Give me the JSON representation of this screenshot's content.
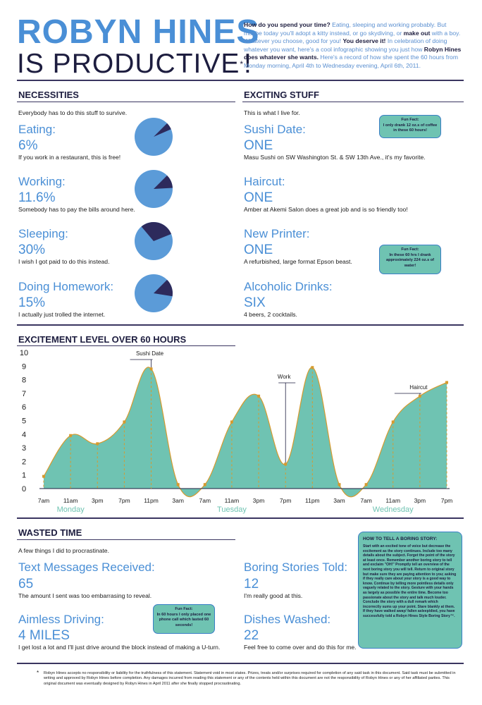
{
  "header": {
    "title_line1": "ROBYN HINES",
    "title_line2": "IS PRODUCTIVE",
    "title_mark": "!",
    "title_asterisk": "*",
    "intro": {
      "p1": "How do you spend your time?",
      "p2": " Eating, sleeping and working probably. But maybe today you'll adopt a kitty instead, or go skydiving, or ",
      "p3": "make out",
      "p4": " with a boy. Whatever you choose, good for you! ",
      "p5": "You deserve it!",
      "p6": " In celebration of doing whatever you want, here's a cool infographic showing you just how ",
      "p7": "Robyn Hines does whatever she wants.",
      "p8": " Here's a record of how she spent the 60 hours from Monday morning, April 4th to Wednesday evening, April 6th, 2011."
    }
  },
  "necessities": {
    "title": "NECESSITIES",
    "subtitle": "Everybody has to do this stuff to survive.",
    "items": [
      {
        "label": "Eating:",
        "value": "6%",
        "percent": 6,
        "note": "If you work in a restaurant, this is free!"
      },
      {
        "label": "Working:",
        "value": "11.6%",
        "percent": 11.6,
        "note": "Somebody has to pay the bills around here."
      },
      {
        "label": "Sleeping:",
        "value": "30%",
        "percent": 30,
        "note": "I wish I got paid to do this instead."
      },
      {
        "label": "Doing Homework:",
        "value": "15%",
        "percent": 15,
        "note": "I actually just trolled the internet."
      }
    ]
  },
  "exciting": {
    "title": "EXCITING STUFF",
    "subtitle": "This is what I live for.",
    "items": [
      {
        "label": "Sushi Date:",
        "value": "ONE",
        "note": "Masu Sushi on SW Washington St. & SW 13th Ave., it's my favorite."
      },
      {
        "label": "Haircut:",
        "value": "ONE",
        "note": "Amber at Akemi Salon does a great job and is so friendly too!"
      },
      {
        "label": "New Printer:",
        "value": "ONE",
        "note": "A refurbished, large format Epson beast."
      },
      {
        "label": "Alcoholic Drinks:",
        "value": "SIX",
        "note": "4 beers, 2 cocktails."
      }
    ],
    "fact1": {
      "title": "Fun Fact:",
      "text": "I only drank 12 oz.s of coffee in these 60 hours!"
    },
    "fact2": {
      "title": "Fun Fact:",
      "text": "In these 60 hrs I drank approximately 224 oz.s of water!"
    }
  },
  "chart_data": {
    "type": "area",
    "title": "EXCITEMENT LEVEL OVER 60 HOURS",
    "ylim": [
      0,
      10
    ],
    "yticks": [
      "0",
      "1",
      "2",
      "3",
      "4",
      "5",
      "6",
      "7",
      "8",
      "9",
      "10"
    ],
    "x_tick_labels": [
      "7am",
      "11am",
      "3pm",
      "7pm",
      "11pm",
      "3am",
      "7am",
      "11am",
      "3pm",
      "7pm",
      "11pm",
      "3am",
      "7am",
      "11am",
      "3pm",
      "7pm"
    ],
    "day_labels": [
      "Monday",
      "Tuesday",
      "Wednesday"
    ],
    "x": [
      0,
      4,
      8,
      12,
      16,
      20,
      24,
      28,
      32,
      36,
      40,
      44,
      48,
      52,
      56,
      60
    ],
    "values": [
      0.9,
      3.9,
      3.3,
      4.9,
      8.8,
      0.3,
      0.3,
      4.9,
      6.8,
      1.8,
      8.9,
      0.3,
      0.3,
      4.9,
      6.8,
      7.8
    ],
    "annotations": [
      {
        "label": "Sushi Date",
        "x": 16,
        "y": 8.8
      },
      {
        "label": "Work",
        "x": 36,
        "y": 1.8
      },
      {
        "label": "Haircut",
        "x": 56,
        "y": 6.8
      }
    ],
    "grid": false,
    "colors": {
      "fill": "#6fc3b2",
      "line": "#d69a2e",
      "marker": "#d69a2e"
    }
  },
  "wasted": {
    "title": "WASTED TIME",
    "subtitle": "A few things I did to procrastinate.",
    "items": [
      {
        "label": "Text Messages Received:",
        "value": "65",
        "note": "The amount I sent was too embarrasing to reveal."
      },
      {
        "label": "Aimless Driving:",
        "value": "4 MILES",
        "note": "I get lost a lot and I'll just drive around the block instead of making a U-turn."
      },
      {
        "label": "Boring Stories Told:",
        "value": "12",
        "note": "I'm really good at this."
      },
      {
        "label": "Dishes Washed:",
        "value": "22",
        "note": "Feel free to come over and do this for me."
      }
    ],
    "fact": {
      "title": "Fun Fact:",
      "text": "In 60 hours I only placed one phone call which lasted 60 seconds!"
    },
    "boring": {
      "title": "HOW TO TELL A BORING STORY:",
      "text": "Start with an excited tone of voice but decrease the excitement as the story continues. Include too many details about the subject. Forget the point of the story at least once. Remember another boring story to tell and exclaim \"OH!\" Promptly tell an overview of the next boring story you will tell. Return to original story but make sure they are paying attention to you; asking if they really care about your story is a good way to know. Continue by telling more pointless details only vaguely related to the story. Gesture with your hands as largely as possible the entire time. Become too passionate about the story and talk much louder. Conclude the story with a dull remark which incorrectly sums up your point. Stare blankly at them. If they have walked away/ fallen asleep/died, you have successfully told a Robyn Hines Style Boring Story™."
    }
  },
  "footer": {
    "star": "*",
    "text": "Robyn Hines accepts no responsibility or liability for the truthfulness of this statement. Statement void in most states. Prizes, treats and/or surprises required for completion of any said task in this document. Said task must be submitted in writing and approved by Robyn Hines before completion. Any damages incurred from reading this statement or any of the contents held within this document are not the responsibility of Robyn Hines or any of her affiliated parties. This original document was eventually designed by Robyn Hines in April 2011 after she finally stopped procrastinating."
  },
  "colors": {
    "accent": "#4a8fd6",
    "navy": "#1d1d3f",
    "pie_main": "#5b9bd8",
    "pie_slice": "#2d2a5c",
    "teal": "#6fc3b2"
  }
}
